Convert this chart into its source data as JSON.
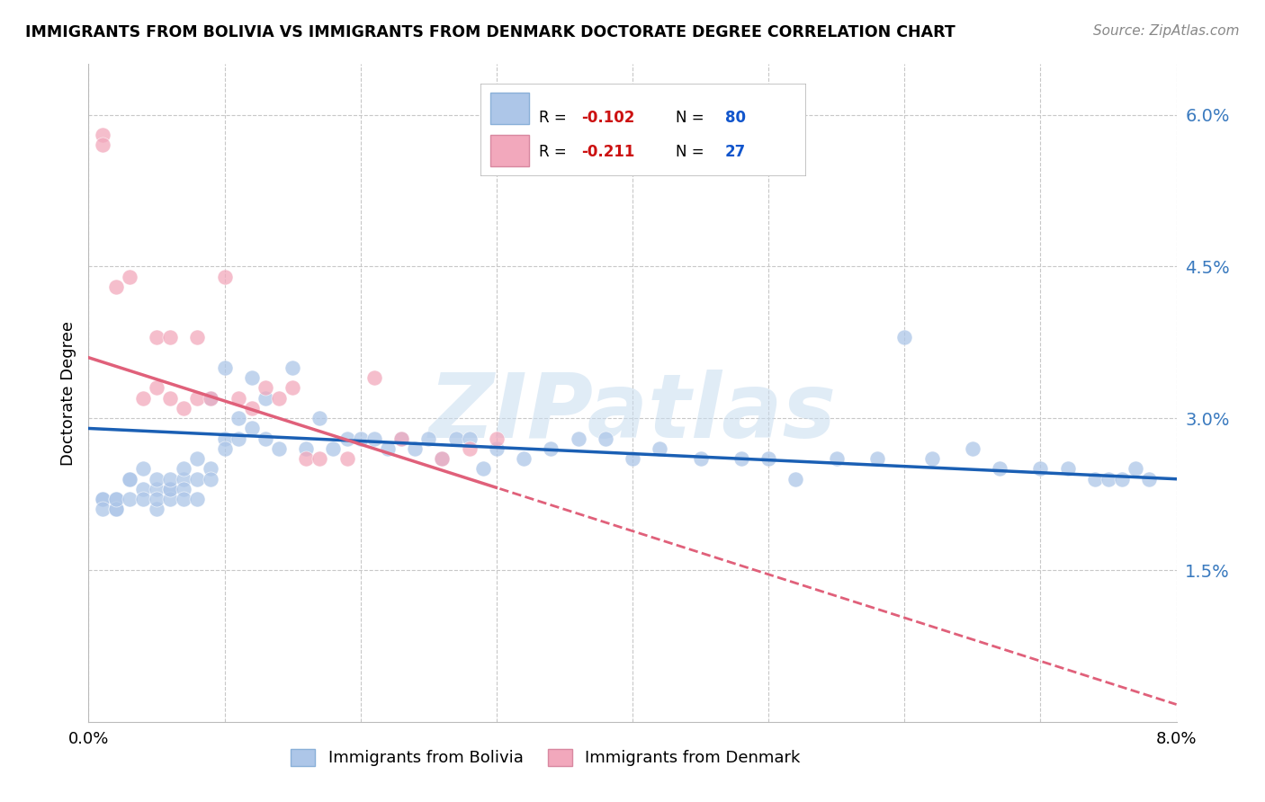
{
  "title": "IMMIGRANTS FROM BOLIVIA VS IMMIGRANTS FROM DENMARK DOCTORATE DEGREE CORRELATION CHART",
  "source": "Source: ZipAtlas.com",
  "ylabel": "Doctorate Degree",
  "xmin": 0.0,
  "xmax": 0.08,
  "ymin": 0.0,
  "ymax": 0.065,
  "yticks": [
    0.015,
    0.03,
    0.045,
    0.06
  ],
  "ytick_labels": [
    "1.5%",
    "3.0%",
    "4.5%",
    "6.0%"
  ],
  "xticks": [
    0.0,
    0.01,
    0.02,
    0.03,
    0.04,
    0.05,
    0.06,
    0.07,
    0.08
  ],
  "xtick_labels": [
    "0.0%",
    "",
    "",
    "",
    "",
    "",
    "",
    "",
    "8.0%"
  ],
  "bolivia_color": "#adc6e8",
  "denmark_color": "#f2a8bc",
  "bolivia_line_color": "#1a5fb4",
  "denmark_line_color": "#e0607a",
  "bolivia_R": -0.102,
  "bolivia_N": 80,
  "denmark_R": -0.211,
  "denmark_N": 27,
  "watermark": "ZIPatlas",
  "bolivia_x": [
    0.001,
    0.001,
    0.001,
    0.002,
    0.002,
    0.002,
    0.002,
    0.003,
    0.003,
    0.003,
    0.004,
    0.004,
    0.004,
    0.005,
    0.005,
    0.005,
    0.005,
    0.006,
    0.006,
    0.006,
    0.006,
    0.007,
    0.007,
    0.007,
    0.007,
    0.008,
    0.008,
    0.008,
    0.009,
    0.009,
    0.009,
    0.01,
    0.01,
    0.01,
    0.011,
    0.011,
    0.012,
    0.012,
    0.013,
    0.013,
    0.014,
    0.015,
    0.016,
    0.017,
    0.018,
    0.019,
    0.02,
    0.021,
    0.022,
    0.023,
    0.024,
    0.025,
    0.026,
    0.027,
    0.028,
    0.029,
    0.03,
    0.032,
    0.034,
    0.036,
    0.038,
    0.04,
    0.042,
    0.045,
    0.048,
    0.05,
    0.052,
    0.055,
    0.058,
    0.06,
    0.062,
    0.065,
    0.067,
    0.07,
    0.072,
    0.074,
    0.075,
    0.076,
    0.077,
    0.078
  ],
  "bolivia_y": [
    0.022,
    0.022,
    0.021,
    0.022,
    0.021,
    0.021,
    0.022,
    0.024,
    0.024,
    0.022,
    0.023,
    0.025,
    0.022,
    0.023,
    0.021,
    0.022,
    0.024,
    0.023,
    0.022,
    0.023,
    0.024,
    0.024,
    0.023,
    0.025,
    0.022,
    0.022,
    0.026,
    0.024,
    0.025,
    0.024,
    0.032,
    0.028,
    0.027,
    0.035,
    0.03,
    0.028,
    0.029,
    0.034,
    0.028,
    0.032,
    0.027,
    0.035,
    0.027,
    0.03,
    0.027,
    0.028,
    0.028,
    0.028,
    0.027,
    0.028,
    0.027,
    0.028,
    0.026,
    0.028,
    0.028,
    0.025,
    0.027,
    0.026,
    0.027,
    0.028,
    0.028,
    0.026,
    0.027,
    0.026,
    0.026,
    0.026,
    0.024,
    0.026,
    0.026,
    0.038,
    0.026,
    0.027,
    0.025,
    0.025,
    0.025,
    0.024,
    0.024,
    0.024,
    0.025,
    0.024
  ],
  "denmark_x": [
    0.001,
    0.001,
    0.002,
    0.003,
    0.004,
    0.005,
    0.005,
    0.006,
    0.006,
    0.007,
    0.008,
    0.008,
    0.009,
    0.01,
    0.011,
    0.012,
    0.013,
    0.014,
    0.015,
    0.016,
    0.017,
    0.019,
    0.021,
    0.023,
    0.026,
    0.028,
    0.03
  ],
  "denmark_y": [
    0.058,
    0.057,
    0.043,
    0.044,
    0.032,
    0.038,
    0.033,
    0.032,
    0.038,
    0.031,
    0.038,
    0.032,
    0.032,
    0.044,
    0.032,
    0.031,
    0.033,
    0.032,
    0.033,
    0.026,
    0.026,
    0.026,
    0.034,
    0.028,
    0.026,
    0.027,
    0.028
  ]
}
